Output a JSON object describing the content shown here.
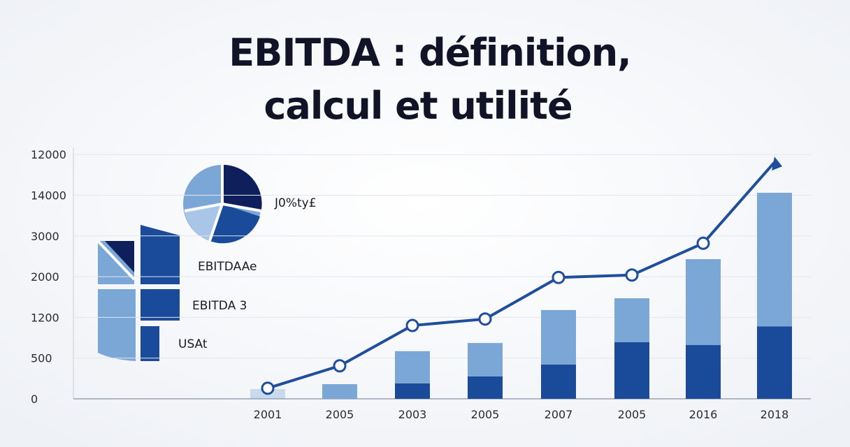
{
  "title_lines": [
    "EBITDA : définition,",
    "calcul et utilité"
  ],
  "chart": {
    "type": "stacked-bar-line",
    "y_labels": [
      "0",
      "500",
      "1200",
      "2000",
      "3000",
      "14000",
      "12000"
    ],
    "x_labels": [
      "2001",
      "2005",
      "2003",
      "2005",
      "2007",
      "2005",
      "2016",
      "2018"
    ],
    "lower_values": [
      0,
      0,
      0.38,
      0.55,
      0.84,
      1.39,
      1.32,
      1.78
    ],
    "upper_values": [
      0.24,
      0.36,
      0.79,
      0.82,
      1.34,
      1.08,
      2.11,
      3.28
    ],
    "line_values": [
      0.26,
      0.81,
      1.8,
      1.96,
      2.98,
      3.04,
      3.82,
      5.81
    ],
    "lower_color": "#1a4a9a",
    "upper_color": "#7ba7d6",
    "line_color": "#1f4e9c",
    "grid": true
  },
  "legend_labels": [
    "J0%ty£",
    "EBITDAAe",
    "EBITDA 3",
    "USAt"
  ]
}
